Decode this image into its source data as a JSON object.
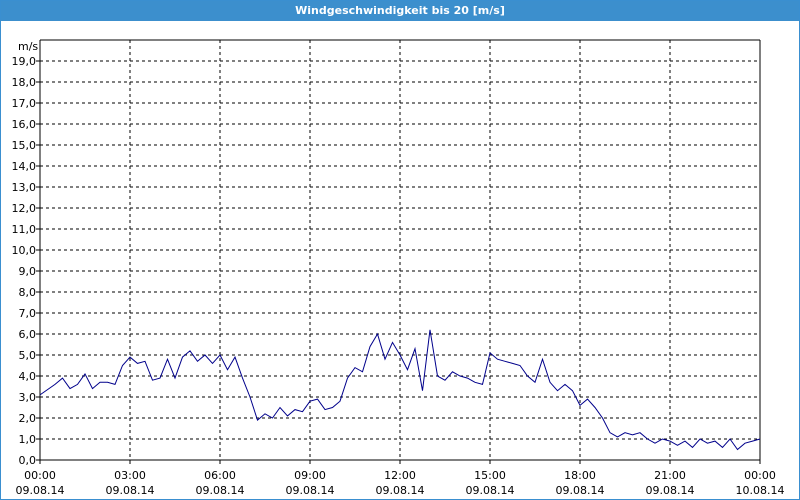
{
  "window": {
    "title": "Windgeschwindigkeit bis 20 [m/s]"
  },
  "colors": {
    "title_bar": "#3c8fcd",
    "line": "#00008b",
    "grid": "#000000"
  },
  "chart_data": {
    "type": "line",
    "title": "Windgeschwindigkeit bis 20 [m/s]",
    "ylabel": "m/s",
    "xlabel": "",
    "ylim": [
      0,
      20
    ],
    "xlim_hours": [
      0,
      24
    ],
    "grid": true,
    "y_ticks": [
      "0,0",
      "1,0",
      "2,0",
      "3,0",
      "4,0",
      "5,0",
      "6,0",
      "7,0",
      "8,0",
      "9,0",
      "10,0",
      "11,0",
      "12,0",
      "13,0",
      "14,0",
      "15,0",
      "16,0",
      "17,0",
      "18,0",
      "19,0"
    ],
    "x_ticks": [
      {
        "time": "00:00",
        "date": "09.08.14"
      },
      {
        "time": "03:00",
        "date": "09.08.14"
      },
      {
        "time": "06:00",
        "date": "09.08.14"
      },
      {
        "time": "09:00",
        "date": "09.08.14"
      },
      {
        "time": "12:00",
        "date": "09.08.14"
      },
      {
        "time": "15:00",
        "date": "09.08.14"
      },
      {
        "time": "18:00",
        "date": "09.08.14"
      },
      {
        "time": "21:00",
        "date": "09.08.14"
      },
      {
        "time": "00:00",
        "date": "10.08.14"
      }
    ],
    "series": [
      {
        "x": [
          0,
          0.5,
          0.75,
          1.0,
          1.25,
          1.5,
          1.75,
          2.0,
          2.25,
          2.5,
          2.75,
          3.0,
          3.25,
          3.5,
          3.75,
          4.0,
          4.25,
          4.5,
          4.75,
          5.0,
          5.25,
          5.5,
          5.75,
          6.0,
          6.25,
          6.5,
          6.75,
          7.0,
          7.25,
          7.5,
          7.75,
          8.0,
          8.25,
          8.5,
          8.75,
          9.0,
          9.25,
          9.5,
          9.75,
          10.0,
          10.25,
          10.5,
          10.75,
          11.0,
          11.25,
          11.5,
          11.75,
          12.0,
          12.25,
          12.5,
          12.75,
          13.0,
          13.25,
          13.5,
          13.75,
          14.0,
          14.25,
          14.5,
          14.75,
          15.0,
          15.25,
          15.5,
          15.75,
          16.0,
          16.25,
          16.5,
          16.75,
          17.0,
          17.25,
          17.5,
          17.75,
          18.0,
          18.25,
          18.5,
          18.75,
          19.0,
          19.25,
          19.5,
          19.75,
          20.0,
          20.25,
          20.5,
          20.75,
          21.0,
          21.25,
          21.5,
          21.75,
          22.0,
          22.25,
          22.5,
          22.75,
          23.0,
          23.25,
          23.5,
          23.75,
          24.0
        ],
        "y": [
          3.1,
          3.6,
          3.9,
          3.4,
          3.6,
          4.1,
          3.4,
          3.7,
          3.7,
          3.6,
          4.5,
          4.9,
          4.6,
          4.7,
          3.8,
          3.9,
          4.8,
          3.9,
          4.9,
          5.2,
          4.7,
          5.0,
          4.6,
          5.0,
          4.3,
          4.9,
          3.9,
          3.0,
          1.9,
          2.2,
          2.0,
          2.5,
          2.1,
          2.4,
          2.3,
          2.8,
          2.9,
          2.4,
          2.5,
          2.8,
          3.9,
          4.4,
          4.2,
          5.4,
          6.0,
          4.8,
          5.6,
          5.0,
          4.3,
          5.3,
          3.3,
          6.2,
          4.0,
          3.8,
          4.2,
          4.0,
          3.9,
          3.7,
          3.6,
          5.1,
          4.8,
          4.7,
          4.6,
          4.5,
          4.0,
          3.7,
          4.8,
          3.7,
          3.3,
          3.6,
          3.3,
          2.6,
          2.9,
          2.5,
          2.0,
          1.3,
          1.1,
          1.3,
          1.2,
          1.3,
          1.0,
          0.8,
          1.0,
          0.9,
          0.7,
          0.9,
          0.6,
          1.0,
          0.8,
          0.9,
          0.6,
          1.0,
          0.5,
          0.8,
          0.9,
          1.0
        ]
      }
    ]
  }
}
